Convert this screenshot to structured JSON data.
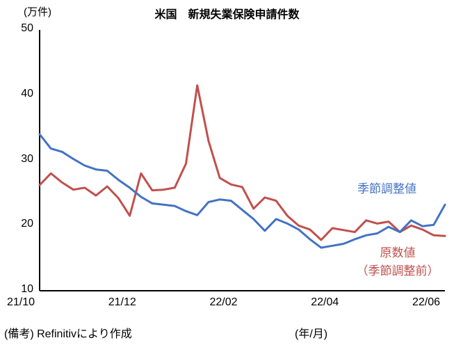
{
  "chart_data": {
    "type": "line",
    "title": "米国　新規失業保険申請件数",
    "unit_label": "(万件)",
    "footnote": "(備考) Refinitivにより作成",
    "x_axis_note": "(年/月)",
    "x_tick_labels": [
      "21/10",
      "21/12",
      "22/02",
      "22/04",
      "22/06"
    ],
    "y_ticks": [
      10,
      20,
      30,
      40,
      50
    ],
    "ylim": [
      10,
      50
    ],
    "x_range_note": "weekly points from 2021/10 through 2022/06, evenly spaced",
    "grid": "off",
    "legend_position": "labels drawn next to lines inside plot",
    "series": [
      {
        "id": "seasonally-adjusted",
        "name": "季節調整値",
        "color": "#4472C4",
        "values": [
          34.0,
          31.8,
          31.3,
          30.2,
          29.2,
          28.6,
          28.4,
          27.0,
          25.8,
          24.4,
          23.4,
          23.2,
          23.0,
          22.2,
          21.6,
          23.6,
          24.0,
          23.8,
          22.4,
          21.0,
          19.2,
          21.0,
          20.3,
          19.4,
          17.9,
          16.6,
          16.9,
          17.2,
          17.9,
          18.5,
          18.8,
          19.8,
          19.0,
          20.8,
          19.9,
          20.1,
          23.2
        ]
      },
      {
        "id": "raw-unadjusted",
        "name": "原数値（季節調整前）",
        "label_lines": [
          "原数値",
          "（季節調整前）"
        ],
        "color": "#C0504D",
        "values": [
          26.2,
          28.0,
          26.6,
          25.5,
          25.8,
          24.6,
          26.0,
          24.2,
          21.5,
          28.0,
          25.4,
          25.5,
          25.8,
          29.5,
          41.5,
          33.0,
          27.3,
          26.3,
          25.9,
          22.6,
          24.3,
          23.8,
          21.5,
          20.0,
          19.4,
          17.8,
          19.6,
          19.3,
          19.0,
          20.8,
          20.3,
          20.6,
          19.0,
          20.0,
          19.4,
          18.5,
          18.4
        ]
      }
    ]
  }
}
